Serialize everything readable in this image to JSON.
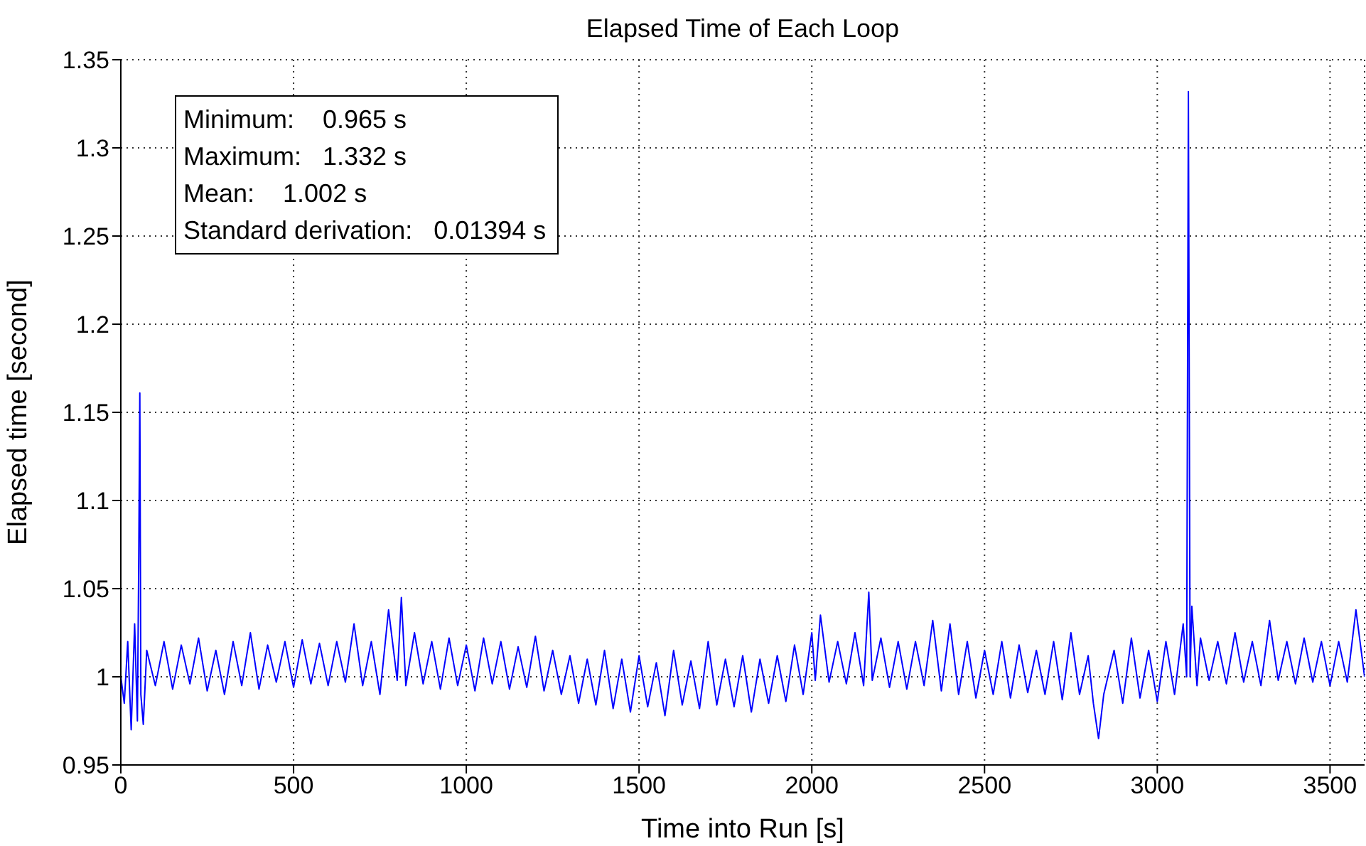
{
  "chart_data": {
    "type": "line",
    "title": "Elapsed Time of Each Loop",
    "xlabel": "Time into Run [s]",
    "ylabel": "Elapsed time [second]",
    "annotations": [
      "Minimum:    0.965 s",
      "Maximum:   1.332 s",
      "Mean:    1.002 s",
      "Standard derivation:   0.01394 s"
    ],
    "x": [
      0,
      10,
      20,
      30,
      40,
      48,
      52,
      55,
      58,
      65,
      75,
      100,
      125,
      150,
      175,
      200,
      225,
      250,
      275,
      300,
      325,
      350,
      375,
      400,
      425,
      450,
      475,
      500,
      525,
      550,
      575,
      600,
      625,
      650,
      675,
      700,
      725,
      750,
      775,
      800,
      812,
      825,
      850,
      875,
      900,
      925,
      950,
      975,
      1000,
      1025,
      1050,
      1075,
      1100,
      1125,
      1150,
      1175,
      1200,
      1225,
      1250,
      1275,
      1300,
      1325,
      1350,
      1375,
      1400,
      1425,
      1450,
      1475,
      1500,
      1525,
      1550,
      1575,
      1600,
      1625,
      1650,
      1675,
      1700,
      1725,
      1750,
      1775,
      1800,
      1825,
      1850,
      1875,
      1900,
      1925,
      1950,
      1975,
      2000,
      2010,
      2025,
      2050,
      2075,
      2100,
      2125,
      2150,
      2165,
      2175,
      2200,
      2225,
      2250,
      2275,
      2300,
      2325,
      2350,
      2375,
      2400,
      2425,
      2450,
      2475,
      2500,
      2525,
      2550,
      2575,
      2600,
      2625,
      2650,
      2675,
      2700,
      2725,
      2750,
      2775,
      2800,
      2815,
      2830,
      2845,
      2875,
      2900,
      2925,
      2950,
      2975,
      3000,
      3025,
      3050,
      3075,
      3085,
      3090,
      3095,
      3100,
      3115,
      3125,
      3150,
      3175,
      3200,
      3225,
      3250,
      3275,
      3300,
      3325,
      3350,
      3375,
      3400,
      3425,
      3450,
      3475,
      3500,
      3525,
      3550,
      3575,
      3600
    ],
    "series": [
      {
        "color": "#0000ff",
        "values": [
          1.0,
          0.985,
          1.02,
          0.97,
          1.03,
          0.975,
          1.07,
          1.161,
          0.99,
          0.973,
          1.015,
          0.995,
          1.02,
          0.993,
          1.018,
          0.996,
          1.022,
          0.992,
          1.015,
          0.99,
          1.02,
          0.995,
          1.025,
          0.993,
          1.018,
          0.997,
          1.02,
          0.994,
          1.021,
          0.996,
          1.019,
          0.995,
          1.02,
          0.997,
          1.03,
          0.995,
          1.02,
          0.99,
          1.038,
          0.998,
          1.045,
          0.995,
          1.025,
          0.996,
          1.02,
          0.993,
          1.022,
          0.995,
          1.018,
          0.992,
          1.022,
          0.996,
          1.02,
          0.993,
          1.017,
          0.994,
          1.023,
          0.992,
          1.015,
          0.99,
          1.012,
          0.985,
          1.01,
          0.984,
          1.015,
          0.982,
          1.01,
          0.98,
          1.012,
          0.983,
          1.008,
          0.978,
          1.015,
          0.984,
          1.009,
          0.982,
          1.02,
          0.984,
          1.01,
          0.983,
          1.012,
          0.98,
          1.01,
          0.985,
          1.012,
          0.986,
          1.018,
          0.99,
          1.025,
          0.998,
          1.035,
          0.997,
          1.02,
          0.996,
          1.025,
          0.995,
          1.048,
          0.998,
          1.022,
          0.994,
          1.02,
          0.993,
          1.02,
          0.995,
          1.032,
          0.992,
          1.03,
          0.99,
          1.02,
          0.988,
          1.015,
          0.99,
          1.02,
          0.988,
          1.018,
          0.991,
          1.015,
          0.99,
          1.02,
          0.987,
          1.025,
          0.99,
          1.012,
          0.985,
          0.965,
          0.99,
          1.015,
          0.985,
          1.022,
          0.988,
          1.015,
          0.986,
          1.02,
          0.99,
          1.03,
          1.0,
          1.332,
          1.0,
          1.04,
          0.995,
          1.022,
          0.998,
          1.02,
          0.996,
          1.025,
          0.997,
          1.02,
          0.995,
          1.032,
          0.998,
          1.02,
          0.996,
          1.022,
          0.997,
          1.02,
          0.995,
          1.02,
          0.997,
          1.038,
          1.0
        ]
      }
    ],
    "xlim": [
      0,
      3600
    ],
    "xticks": [
      0,
      500,
      1000,
      1500,
      2000,
      2500,
      3000,
      3500
    ],
    "ylim": [
      0.95,
      1.35
    ],
    "yticks": [
      0.95,
      1,
      1.05,
      1.1,
      1.15,
      1.2,
      1.25,
      1.3,
      1.35
    ],
    "grid": true,
    "line_style": "solid",
    "marker": "none"
  }
}
